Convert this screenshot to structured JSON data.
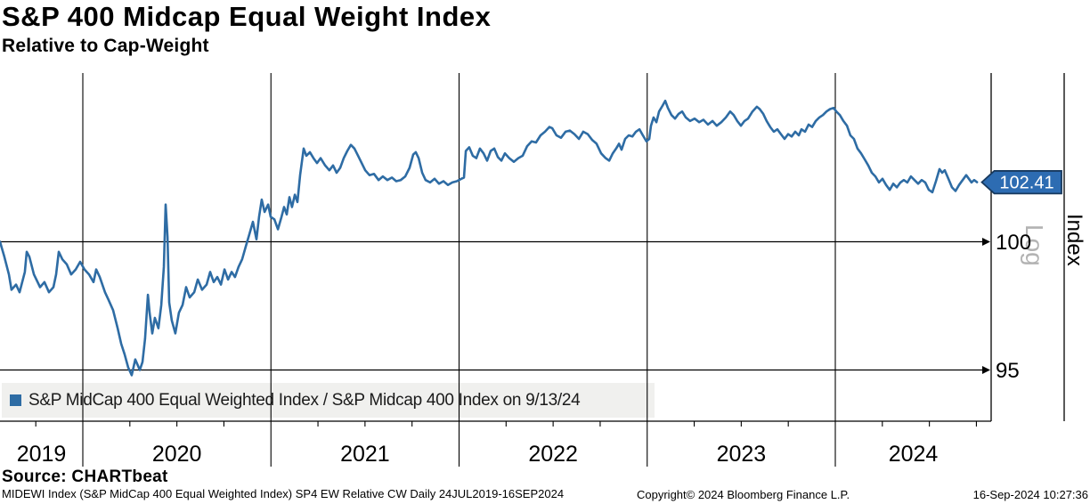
{
  "header": {
    "title": "S&P 400 Midcap Equal Weight Index",
    "subtitle": "Relative to Cap-Weight"
  },
  "legend": {
    "marker_color": "#2e6ca4",
    "label": "S&P MidCap 400 Equal Weighted Index / S&P Midcap 400 Index on 9/13/24"
  },
  "source_line": "Source: CHARTbeat",
  "footer": {
    "left": "MIDEWI Index (S&P MidCap 400 Equal Weighted Index) SP4 EW Relative CW  Daily 24JUL2019-16SEP2024",
    "copyright": "Copyright© 2024 Bloomberg Finance L.P.",
    "timestamp": "16-Sep-2024 10:27:36"
  },
  "chart_data": {
    "type": "line",
    "title": "S&P 400 Midcap Equal Weight Index",
    "subtitle": "Relative to Cap-Weight",
    "scale": "log",
    "scale_label": "Log",
    "right_axis_title": "Index",
    "x_tick_labels": [
      "2019",
      "2020",
      "2021",
      "2022",
      "2023",
      "2024"
    ],
    "x_range_label": "24JUL2019-16SEP2024",
    "xlim": [
      2019.56,
      2024.83
    ],
    "y_ticks": [
      100,
      95
    ],
    "ylim": [
      93.1,
      107.0
    ],
    "grid": true,
    "legend_position": "bottom-left",
    "last_value": 102.41,
    "last_value_label": "102.41",
    "last_date": "9/13/24",
    "colors": {
      "line": "#2e6ca4",
      "badge_fill": "#2d6cb2",
      "badge_border": "#17395e",
      "grid": "#000000",
      "legend_bg": "#f0f0ee",
      "scale_label_gray": "#b3b3b3"
    },
    "series": [
      {
        "name": "S&P MidCap 400 Equal Weighted Index / S&P Midcap 400 Index",
        "points": [
          [
            2019.56,
            100.0
          ],
          [
            2019.583,
            99.4
          ],
          [
            2019.607,
            98.7
          ],
          [
            2019.621,
            98.1
          ],
          [
            2019.645,
            98.3
          ],
          [
            2019.664,
            98.0
          ],
          [
            2019.692,
            98.8
          ],
          [
            2019.702,
            99.6
          ],
          [
            2019.716,
            99.4
          ],
          [
            2019.74,
            98.7
          ],
          [
            2019.773,
            98.2
          ],
          [
            2019.796,
            98.4
          ],
          [
            2019.82,
            98.0
          ],
          [
            2019.844,
            98.2
          ],
          [
            2019.858,
            98.7
          ],
          [
            2019.872,
            99.6
          ],
          [
            2019.891,
            99.3
          ],
          [
            2019.915,
            99.1
          ],
          [
            2019.938,
            98.7
          ],
          [
            2019.962,
            98.9
          ],
          [
            2019.986,
            99.2
          ],
          [
            2020.009,
            98.9
          ],
          [
            2020.033,
            98.7
          ],
          [
            2020.057,
            98.4
          ],
          [
            2020.071,
            98.9
          ],
          [
            2020.09,
            98.6
          ],
          [
            2020.118,
            98.0
          ],
          [
            2020.137,
            97.7
          ],
          [
            2020.161,
            97.3
          ],
          [
            2020.185,
            96.6
          ],
          [
            2020.204,
            96.0
          ],
          [
            2020.222,
            95.6
          ],
          [
            2020.241,
            95.1
          ],
          [
            2020.26,
            94.8
          ],
          [
            2020.279,
            95.4
          ],
          [
            2020.303,
            95.0
          ],
          [
            2020.317,
            95.3
          ],
          [
            2020.331,
            96.2
          ],
          [
            2020.346,
            97.9
          ],
          [
            2020.355,
            97.2
          ],
          [
            2020.369,
            96.4
          ],
          [
            2020.383,
            97.0
          ],
          [
            2020.402,
            96.6
          ],
          [
            2020.417,
            97.5
          ],
          [
            2020.431,
            99.0
          ],
          [
            2020.44,
            101.5
          ],
          [
            2020.45,
            100.2
          ],
          [
            2020.459,
            97.6
          ],
          [
            2020.473,
            96.9
          ],
          [
            2020.492,
            96.4
          ],
          [
            2020.511,
            97.2
          ],
          [
            2020.53,
            97.5
          ],
          [
            2020.549,
            98.2
          ],
          [
            2020.568,
            97.8
          ],
          [
            2020.592,
            98.0
          ],
          [
            2020.611,
            98.5
          ],
          [
            2020.634,
            98.1
          ],
          [
            2020.658,
            98.3
          ],
          [
            2020.677,
            98.8
          ],
          [
            2020.696,
            98.4
          ],
          [
            2020.715,
            98.6
          ],
          [
            2020.734,
            98.3
          ],
          [
            2020.753,
            98.9
          ],
          [
            2020.772,
            98.5
          ],
          [
            2020.791,
            98.8
          ],
          [
            2020.809,
            98.6
          ],
          [
            2020.828,
            99.0
          ],
          [
            2020.847,
            99.3
          ],
          [
            2020.866,
            99.8
          ],
          [
            2020.885,
            100.3
          ],
          [
            2020.904,
            100.8
          ],
          [
            2020.923,
            100.1
          ],
          [
            2020.937,
            101.0
          ],
          [
            2020.951,
            101.7
          ],
          [
            2020.966,
            101.2
          ],
          [
            2020.985,
            101.5
          ],
          [
            2020.999,
            101.0
          ],
          [
            2021.018,
            100.9
          ],
          [
            2021.037,
            100.5
          ],
          [
            2021.056,
            101.0
          ],
          [
            2021.07,
            101.4
          ],
          [
            2021.084,
            101.1
          ],
          [
            2021.098,
            101.8
          ],
          [
            2021.112,
            101.4
          ],
          [
            2021.127,
            101.9
          ],
          [
            2021.141,
            101.6
          ],
          [
            2021.155,
            102.7
          ],
          [
            2021.174,
            103.8
          ],
          [
            2021.188,
            103.5
          ],
          [
            2021.207,
            103.65
          ],
          [
            2021.226,
            103.4
          ],
          [
            2021.245,
            103.2
          ],
          [
            2021.264,
            103.4
          ],
          [
            2021.288,
            103.1
          ],
          [
            2021.311,
            102.9
          ],
          [
            2021.33,
            103.1
          ],
          [
            2021.349,
            102.8
          ],
          [
            2021.368,
            103.0
          ],
          [
            2021.387,
            103.4
          ],
          [
            2021.406,
            103.7
          ],
          [
            2021.425,
            103.95
          ],
          [
            2021.444,
            103.8
          ],
          [
            2021.463,
            103.5
          ],
          [
            2021.482,
            103.2
          ],
          [
            2021.501,
            102.9
          ],
          [
            2021.524,
            102.7
          ],
          [
            2021.548,
            102.75
          ],
          [
            2021.572,
            102.5
          ],
          [
            2021.595,
            102.65
          ],
          [
            2021.619,
            102.5
          ],
          [
            2021.643,
            102.6
          ],
          [
            2021.666,
            102.45
          ],
          [
            2021.69,
            102.5
          ],
          [
            2021.714,
            102.65
          ],
          [
            2021.737,
            103.0
          ],
          [
            2021.756,
            103.55
          ],
          [
            2021.77,
            103.65
          ],
          [
            2021.785,
            103.4
          ],
          [
            2021.804,
            102.8
          ],
          [
            2021.822,
            102.5
          ],
          [
            2021.846,
            102.4
          ],
          [
            2021.87,
            102.55
          ],
          [
            2021.893,
            102.35
          ],
          [
            2021.917,
            102.45
          ],
          [
            2021.941,
            102.3
          ],
          [
            2021.964,
            102.4
          ],
          [
            2021.988,
            102.45
          ],
          [
            2022.012,
            102.55
          ],
          [
            2022.026,
            102.6
          ],
          [
            2022.036,
            103.7
          ],
          [
            2022.054,
            103.85
          ],
          [
            2022.073,
            103.5
          ],
          [
            2022.092,
            103.4
          ],
          [
            2022.111,
            103.8
          ],
          [
            2022.13,
            103.6
          ],
          [
            2022.149,
            103.3
          ],
          [
            2022.168,
            103.7
          ],
          [
            2022.187,
            103.8
          ],
          [
            2022.206,
            103.45
          ],
          [
            2022.225,
            103.3
          ],
          [
            2022.244,
            103.6
          ],
          [
            2022.267,
            103.4
          ],
          [
            2022.291,
            103.25
          ],
          [
            2022.315,
            103.4
          ],
          [
            2022.338,
            103.5
          ],
          [
            2022.362,
            103.9
          ],
          [
            2022.386,
            104.1
          ],
          [
            2022.409,
            104.05
          ],
          [
            2022.433,
            104.35
          ],
          [
            2022.457,
            104.5
          ],
          [
            2022.48,
            104.7
          ],
          [
            2022.495,
            104.65
          ],
          [
            2022.518,
            104.35
          ],
          [
            2022.542,
            104.25
          ],
          [
            2022.566,
            104.5
          ],
          [
            2022.589,
            104.55
          ],
          [
            2022.613,
            104.4
          ],
          [
            2022.637,
            104.2
          ],
          [
            2022.66,
            104.5
          ],
          [
            2022.684,
            104.4
          ],
          [
            2022.708,
            104.15
          ],
          [
            2022.731,
            104.0
          ],
          [
            2022.755,
            103.6
          ],
          [
            2022.779,
            103.4
          ],
          [
            2022.798,
            103.3
          ],
          [
            2022.817,
            103.6
          ],
          [
            2022.835,
            103.8
          ],
          [
            2022.85,
            104.0
          ],
          [
            2022.864,
            103.75
          ],
          [
            2022.883,
            104.2
          ],
          [
            2022.902,
            104.35
          ],
          [
            2022.921,
            104.3
          ],
          [
            2022.94,
            104.5
          ],
          [
            2022.959,
            104.6
          ],
          [
            2022.977,
            104.35
          ],
          [
            2022.996,
            104.1
          ],
          [
            2023.011,
            104.2
          ],
          [
            2023.02,
            104.75
          ],
          [
            2023.034,
            105.1
          ],
          [
            2023.049,
            104.9
          ],
          [
            2023.063,
            105.35
          ],
          [
            2023.082,
            105.6
          ],
          [
            2023.096,
            105.8
          ],
          [
            2023.11,
            105.5
          ],
          [
            2023.129,
            105.2
          ],
          [
            2023.148,
            105.05
          ],
          [
            2023.167,
            105.25
          ],
          [
            2023.186,
            105.35
          ],
          [
            2023.205,
            105.1
          ],
          [
            2023.228,
            104.95
          ],
          [
            2023.252,
            105.05
          ],
          [
            2023.276,
            104.9
          ],
          [
            2023.299,
            105.0
          ],
          [
            2023.323,
            104.8
          ],
          [
            2023.347,
            104.95
          ],
          [
            2023.37,
            104.75
          ],
          [
            2023.394,
            104.9
          ],
          [
            2023.418,
            105.1
          ],
          [
            2023.441,
            105.35
          ],
          [
            2023.46,
            105.2
          ],
          [
            2023.479,
            104.95
          ],
          [
            2023.498,
            104.75
          ],
          [
            2023.517,
            104.95
          ],
          [
            2023.536,
            105.05
          ],
          [
            2023.56,
            105.35
          ],
          [
            2023.583,
            105.55
          ],
          [
            2023.598,
            105.45
          ],
          [
            2023.617,
            105.25
          ],
          [
            2023.635,
            104.95
          ],
          [
            2023.654,
            104.7
          ],
          [
            2023.673,
            104.5
          ],
          [
            2023.692,
            104.6
          ],
          [
            2023.711,
            104.4
          ],
          [
            2023.73,
            104.2
          ],
          [
            2023.749,
            104.4
          ],
          [
            2023.768,
            104.3
          ],
          [
            2023.787,
            104.5
          ],
          [
            2023.806,
            104.35
          ],
          [
            2023.82,
            104.6
          ],
          [
            2023.839,
            104.5
          ],
          [
            2023.858,
            104.8
          ],
          [
            2023.877,
            104.7
          ],
          [
            2023.896,
            104.95
          ],
          [
            2023.915,
            105.1
          ],
          [
            2023.934,
            105.2
          ],
          [
            2023.953,
            105.35
          ],
          [
            2023.972,
            105.45
          ],
          [
            2023.991,
            105.5
          ],
          [
            2024.005,
            105.35
          ],
          [
            2024.024,
            105.2
          ],
          [
            2024.043,
            104.95
          ],
          [
            2024.062,
            104.75
          ],
          [
            2024.08,
            104.35
          ],
          [
            2024.099,
            104.2
          ],
          [
            2024.118,
            103.8
          ],
          [
            2024.137,
            103.6
          ],
          [
            2024.156,
            103.35
          ],
          [
            2024.175,
            103.1
          ],
          [
            2024.194,
            102.8
          ],
          [
            2024.213,
            102.65
          ],
          [
            2024.232,
            102.4
          ],
          [
            2024.251,
            102.55
          ],
          [
            2024.27,
            102.3
          ],
          [
            2024.289,
            102.1
          ],
          [
            2024.308,
            102.35
          ],
          [
            2024.327,
            102.2
          ],
          [
            2024.346,
            102.4
          ],
          [
            2024.364,
            102.5
          ],
          [
            2024.383,
            102.4
          ],
          [
            2024.402,
            102.65
          ],
          [
            2024.421,
            102.5
          ],
          [
            2024.44,
            102.35
          ],
          [
            2024.459,
            102.5
          ],
          [
            2024.478,
            102.4
          ],
          [
            2024.497,
            102.1
          ],
          [
            2024.516,
            102.0
          ],
          [
            2024.535,
            102.45
          ],
          [
            2024.554,
            102.95
          ],
          [
            2024.568,
            102.8
          ],
          [
            2024.582,
            102.9
          ],
          [
            2024.601,
            102.55
          ],
          [
            2024.62,
            102.2
          ],
          [
            2024.639,
            102.05
          ],
          [
            2024.658,
            102.3
          ],
          [
            2024.677,
            102.5
          ],
          [
            2024.696,
            102.7
          ],
          [
            2024.71,
            102.55
          ],
          [
            2024.724,
            102.4
          ],
          [
            2024.738,
            102.5
          ],
          [
            2024.753,
            102.41
          ]
        ]
      }
    ]
  }
}
